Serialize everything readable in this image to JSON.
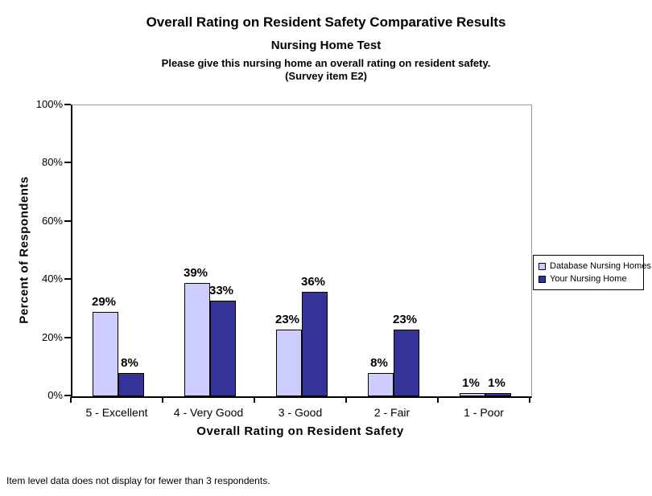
{
  "header": {
    "title": "Overall Rating on Resident Safety Comparative Results",
    "subtitle": "Nursing Home Test",
    "question_line1": "Please give this nursing home an overall rating on resident safety.",
    "question_line2": "(Survey item E2)"
  },
  "chart_data": {
    "type": "bar",
    "title": "Overall Rating on Resident Safety Comparative Results",
    "categories": [
      "5 - Excellent",
      "4 - Very Good",
      "3 - Good",
      "2 - Fair",
      "1 - Poor"
    ],
    "series": [
      {
        "name": "Database Nursing Homes",
        "color": "#CCCCFF",
        "values": [
          29,
          39,
          23,
          8,
          1
        ]
      },
      {
        "name": "Your Nursing Home",
        "color": "#333399",
        "values": [
          8,
          33,
          36,
          23,
          1
        ]
      }
    ],
    "data_labels": [
      [
        "29%",
        "39%",
        "23%",
        "8%",
        "1%"
      ],
      [
        "8%",
        "33%",
        "36%",
        "23%",
        "1%"
      ]
    ],
    "xlabel": "Overall Rating on Resident Safety",
    "ylabel": "Percent of Respondents",
    "ylim": [
      0,
      100
    ],
    "ytick_step": 20,
    "yticks": [
      "0%",
      "20%",
      "40%",
      "60%",
      "80%",
      "100%"
    ],
    "grid": false,
    "legend_position": "right",
    "bar_border_color": "#000000",
    "axis_color": "#000000",
    "plot_border_color": "#9a9a9a"
  },
  "footer": {
    "note": "Item level data does not display for fewer than 3 respondents."
  }
}
